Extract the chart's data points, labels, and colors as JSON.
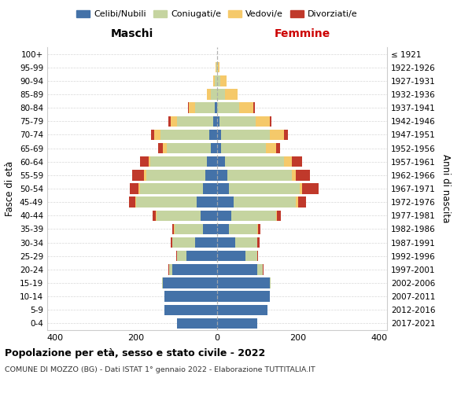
{
  "age_groups": [
    "0-4",
    "5-9",
    "10-14",
    "15-19",
    "20-24",
    "25-29",
    "30-34",
    "35-39",
    "40-44",
    "45-49",
    "50-54",
    "55-59",
    "60-64",
    "65-69",
    "70-74",
    "75-79",
    "80-84",
    "85-89",
    "90-94",
    "95-99",
    "100+"
  ],
  "birth_years": [
    "2017-2021",
    "2012-2016",
    "2007-2011",
    "2002-2006",
    "1997-2001",
    "1992-1996",
    "1987-1991",
    "1982-1986",
    "1977-1981",
    "1972-1976",
    "1967-1971",
    "1962-1966",
    "1957-1961",
    "1952-1956",
    "1947-1951",
    "1942-1946",
    "1937-1941",
    "1932-1936",
    "1927-1931",
    "1922-1926",
    "≤ 1921"
  ],
  "maschi": {
    "celibi": [
      100,
      130,
      130,
      135,
      110,
      75,
      55,
      35,
      40,
      50,
      35,
      30,
      25,
      15,
      20,
      10,
      5,
      0,
      0,
      0,
      0
    ],
    "coniugati": [
      0,
      0,
      0,
      2,
      8,
      25,
      55,
      70,
      110,
      150,
      155,
      145,
      140,
      110,
      120,
      90,
      50,
      15,
      5,
      2,
      0
    ],
    "vedovi": [
      0,
      0,
      0,
      0,
      0,
      0,
      0,
      1,
      2,
      2,
      5,
      5,
      5,
      10,
      15,
      15,
      15,
      10,
      5,
      2,
      0
    ],
    "divorziati": [
      0,
      0,
      0,
      0,
      2,
      2,
      5,
      5,
      8,
      15,
      20,
      30,
      20,
      10,
      8,
      5,
      2,
      0,
      0,
      0,
      0
    ]
  },
  "femmine": {
    "nubili": [
      100,
      125,
      130,
      130,
      100,
      70,
      45,
      30,
      35,
      40,
      30,
      25,
      20,
      10,
      10,
      5,
      0,
      0,
      0,
      0,
      0
    ],
    "coniugate": [
      0,
      0,
      0,
      2,
      12,
      30,
      55,
      70,
      110,
      155,
      175,
      160,
      145,
      110,
      120,
      90,
      55,
      20,
      8,
      2,
      0
    ],
    "vedove": [
      0,
      0,
      0,
      0,
      0,
      0,
      0,
      2,
      2,
      5,
      5,
      10,
      20,
      25,
      35,
      35,
      35,
      30,
      15,
      3,
      0
    ],
    "divorziate": [
      0,
      0,
      0,
      0,
      2,
      2,
      5,
      5,
      10,
      20,
      40,
      35,
      25,
      10,
      10,
      5,
      3,
      0,
      0,
      0,
      0
    ]
  },
  "colors": {
    "celibi": "#4472a8",
    "coniugati": "#c5d4a0",
    "vedovi": "#f5c96a",
    "divorziati": "#c0392b"
  },
  "xlim": [
    -420,
    420
  ],
  "xticks": [
    -400,
    -200,
    0,
    200,
    400
  ],
  "xticklabels": [
    "400",
    "200",
    "0",
    "200",
    "400"
  ],
  "title1": "Popolazione per età, sesso e stato civile - 2022",
  "title2": "COMUNE DI MOZZO (BG) - Dati ISTAT 1° gennaio 2022 - Elaborazione TUTTITALIA.IT",
  "maschi_label": "Maschi",
  "femmine_label": "Femmine",
  "ylabel": "Fasce di età",
  "ylabel2": "Anni di nascita",
  "legend_labels": [
    "Celibi/Nubili",
    "Coniugati/e",
    "Vedovi/e",
    "Divorziati/e"
  ],
  "background_color": "#ffffff"
}
